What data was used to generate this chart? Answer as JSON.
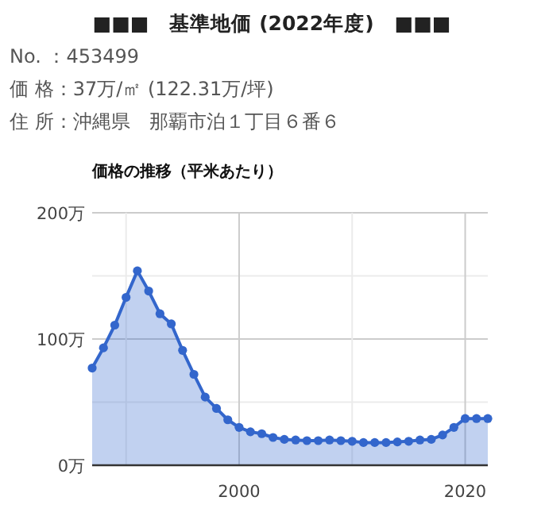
{
  "chart_data": {
    "type": "area",
    "title": "価格の推移（平米あたり）",
    "annotations": [
      "■■■　基準地価 (2022年度)　■■■",
      "No. ：453499",
      "価 格：37万/㎡ (122.31万/坪)",
      "住 所：沖縄県　那覇市泊１丁目６番６"
    ],
    "x": [
      1987,
      1988,
      1989,
      1990,
      1991,
      1992,
      1993,
      1994,
      1995,
      1996,
      1997,
      1998,
      1999,
      2000,
      2001,
      2002,
      2003,
      2004,
      2005,
      2006,
      2007,
      2008,
      2009,
      2010,
      2011,
      2012,
      2013,
      2014,
      2015,
      2016,
      2017,
      2018,
      2019,
      2020,
      2021,
      2022
    ],
    "series": [
      {
        "color": "#3366cc",
        "values": [
          77,
          93,
          111,
          133,
          154,
          138,
          120,
          112,
          91,
          72,
          54,
          45,
          36,
          30,
          26.5,
          25,
          22,
          20.5,
          20,
          19.5,
          19.5,
          20,
          19.5,
          19,
          18,
          18,
          18,
          18.5,
          19,
          20,
          20.5,
          24,
          30,
          37,
          37,
          37
        ]
      }
    ],
    "xlim": [
      1987,
      2022
    ],
    "ylim": [
      0,
      200
    ],
    "xticks": [
      {
        "value": 1990,
        "label": null
      },
      2000,
      {
        "value": 2010,
        "label": null
      },
      2020
    ],
    "yticks": [
      {
        "value": 0,
        "label": "0万"
      },
      {
        "value": 50,
        "label": null
      },
      {
        "value": 100,
        "label": "100万"
      },
      {
        "value": 150,
        "label": null
      },
      {
        "value": 200,
        "label": "200万"
      }
    ],
    "grid": true,
    "marker": "circle"
  }
}
